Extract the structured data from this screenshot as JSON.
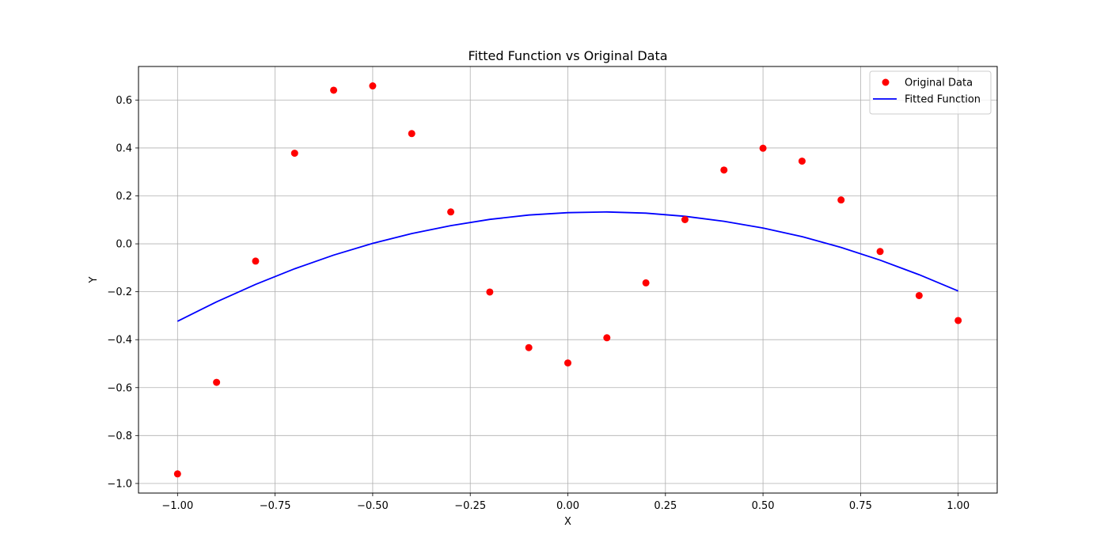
{
  "chart_data": {
    "type": "scatter",
    "title": "Fitted Function vs Original Data",
    "xlabel": "X",
    "ylabel": "Y",
    "xlim": [
      -1.1,
      1.1
    ],
    "ylim": [
      -1.04,
      0.74
    ],
    "xticks": [
      -1.0,
      -0.75,
      -0.5,
      -0.25,
      0.0,
      0.25,
      0.5,
      0.75,
      1.0
    ],
    "xtick_labels": [
      "−1.00",
      "−0.75",
      "−0.50",
      "−0.25",
      "0.00",
      "0.25",
      "0.50",
      "0.75",
      "1.00"
    ],
    "yticks": [
      -1.0,
      -0.8,
      -0.6,
      -0.4,
      -0.2,
      0.0,
      0.2,
      0.4,
      0.6
    ],
    "ytick_labels": [
      "−1.0",
      "−0.8",
      "−0.6",
      "−0.4",
      "−0.2",
      "0.0",
      "0.2",
      "0.4",
      "0.6"
    ],
    "grid": true,
    "legend_position": "top-right",
    "series": [
      {
        "name": "Original Data",
        "kind": "scatter",
        "color": "#ff0000",
        "x": [
          -1.0,
          -0.9,
          -0.8,
          -0.7,
          -0.6,
          -0.5,
          -0.4,
          -0.3,
          -0.2,
          -0.1,
          0.0,
          0.1,
          0.2,
          0.3,
          0.4,
          0.5,
          0.6,
          0.7,
          0.8,
          0.9,
          1.0
        ],
        "y": [
          -0.96,
          -0.578,
          -0.072,
          0.378,
          0.641,
          0.659,
          0.46,
          0.133,
          -0.201,
          -0.433,
          -0.497,
          -0.392,
          -0.163,
          0.101,
          0.308,
          0.399,
          0.345,
          0.183,
          -0.032,
          -0.216,
          -0.32
        ]
      },
      {
        "name": "Fitted Function",
        "kind": "line",
        "color": "#0000ff",
        "x": [
          -1.0,
          -0.9,
          -0.8,
          -0.7,
          -0.6,
          -0.5,
          -0.4,
          -0.3,
          -0.2,
          -0.1,
          0.0,
          0.1,
          0.2,
          0.3,
          0.4,
          0.5,
          0.6,
          0.7,
          0.8,
          0.9,
          1.0
        ],
        "y": [
          -0.323,
          -0.242,
          -0.169,
          -0.104,
          -0.047,
          0.002,
          0.043,
          0.076,
          0.102,
          0.12,
          0.13,
          0.133,
          0.128,
          0.115,
          0.094,
          0.066,
          0.03,
          -0.015,
          -0.068,
          -0.129,
          -0.197
        ]
      }
    ]
  }
}
